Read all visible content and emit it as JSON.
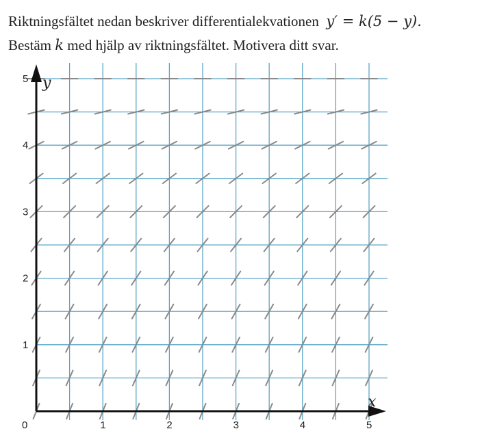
{
  "question": {
    "line1_text": "Riktningsfältet nedan beskriver differentialekvationen",
    "equation": "y′ = k(5 − y).",
    "line2_pre": "Bestäm",
    "line2_var": "k",
    "line2_post": "med hjälp av riktningsfältet. Motivera ditt svar."
  },
  "chart_data": {
    "type": "direction-field",
    "x_axis_label": "x",
    "y_axis_label": "y",
    "origin_label": "0",
    "x_ticks": [
      "1",
      "2",
      "3",
      "4",
      "5"
    ],
    "y_ticks": [
      "1",
      "2",
      "3",
      "4",
      "5"
    ],
    "xlim": [
      0,
      5
    ],
    "ylim": [
      0,
      5
    ],
    "grid_step": 0.5,
    "grid": true,
    "sample_x": [
      0,
      0.5,
      1,
      1.5,
      2,
      2.5,
      3,
      3.5,
      4,
      4.5,
      5
    ],
    "sample_y": [
      0,
      0.5,
      1,
      1.5,
      2,
      2.5,
      3,
      3.5,
      4,
      4.5,
      5
    ],
    "slopes_by_y": [
      {
        "y": 0,
        "slope": 2.5
      },
      {
        "y": 0.5,
        "slope": 2.25
      },
      {
        "y": 1,
        "slope": 2.0
      },
      {
        "y": 1.5,
        "slope": 1.75
      },
      {
        "y": 2,
        "slope": 1.5
      },
      {
        "y": 2.5,
        "slope": 1.25
      },
      {
        "y": 3,
        "slope": 1.0
      },
      {
        "y": 3.5,
        "slope": 0.75
      },
      {
        "y": 4,
        "slope": 0.5
      },
      {
        "y": 4.5,
        "slope": 0.25
      },
      {
        "y": 5,
        "slope": 0
      }
    ],
    "colors": {
      "grid": "#5aa6c9",
      "axis": "#111111",
      "segment": "#8a8a8a"
    }
  }
}
